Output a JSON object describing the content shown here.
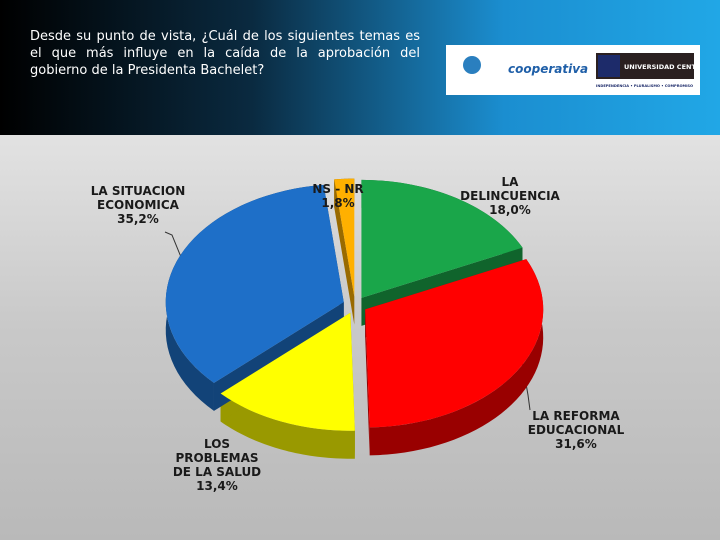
{
  "title": "Desde su punto de vista, ¿Cuál de los siguientes temas es el que más influye en la caída de la aprobación del gobierno de la Presidenta Bachelet?",
  "logos": {
    "radio": "cooperativa",
    "university": "UNIVERSIDAD CENTRAL",
    "motto": "INDEPENDENCIA • PLURALISMO • COMPROMISO"
  },
  "chart_data": {
    "type": "pie",
    "categories": [
      "LA DELINCUENCIA",
      "LA REFORMA EDUCACIONAL",
      "LOS PROBLEMAS DE LA SALUD",
      "LA SITUACION ECONOMICA",
      "NS - NR"
    ],
    "values": [
      18.0,
      31.6,
      13.4,
      35.2,
      1.8
    ],
    "value_labels": [
      "18,0%",
      "31,6%",
      "13,4%",
      "35,2%",
      "1,8%"
    ],
    "colors": [
      "#1aa64a",
      "#ff0000",
      "#ffff00",
      "#1e6fc8",
      "#ffb000"
    ]
  }
}
